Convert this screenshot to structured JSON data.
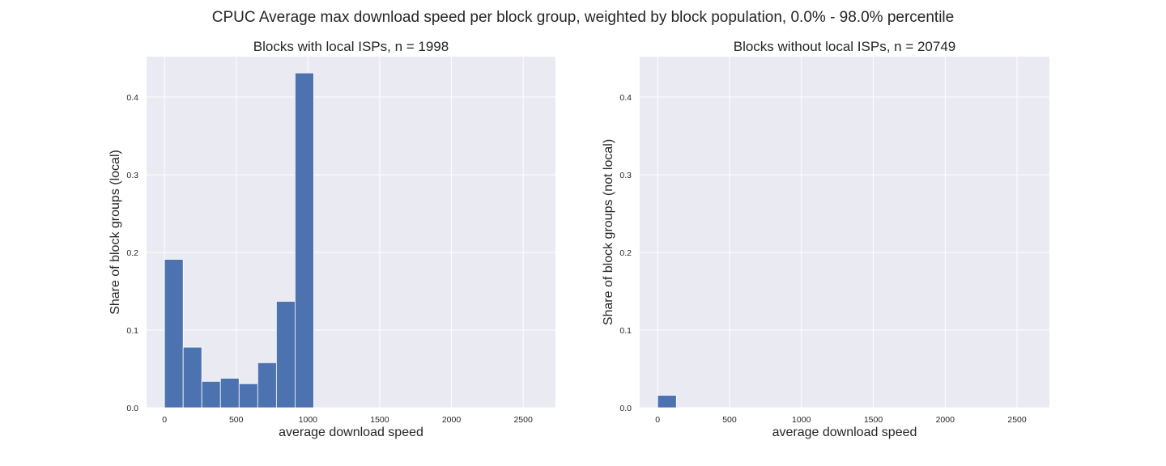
{
  "figure": {
    "suptitle": "CPUC Average max download speed per block group, weighted by block population, 0.0% - 98.0% percentile"
  },
  "colors": {
    "axes_background": "#eaeaf2",
    "grid": "#ffffff",
    "bar_fill": "#4c72b0",
    "bar_edge": "#ffffff",
    "text": "#262626"
  },
  "chart_data": [
    {
      "type": "bar",
      "title": "Blocks with local ISPs, n = 1998",
      "xlabel": "average download speed",
      "ylabel": "Share of block groups (local)",
      "xlim": [
        -125,
        2725
      ],
      "ylim": [
        0,
        0.452
      ],
      "xticks": [
        0,
        500,
        1000,
        1500,
        2000,
        2500
      ],
      "xtick_labels": [
        "0",
        "500",
        "1000",
        "1500",
        "2000",
        "2500"
      ],
      "yticks": [
        0.0,
        0.1,
        0.2,
        0.3,
        0.4
      ],
      "ytick_labels": [
        "0.0",
        "0.1",
        "0.2",
        "0.3",
        "0.4"
      ],
      "grid": true,
      "bin_edges": [
        0,
        130,
        260,
        390,
        520,
        650,
        780,
        910,
        1040
      ],
      "values": [
        0.191,
        0.078,
        0.034,
        0.038,
        0.031,
        0.058,
        0.137,
        0.431
      ]
    },
    {
      "type": "bar",
      "title": "Blocks without local ISPs, n = 20749",
      "xlabel": "average download speed",
      "ylabel": "Share of block groups (not local)",
      "xlim": [
        -125,
        2725
      ],
      "ylim": [
        0,
        0.452
      ],
      "xticks": [
        0,
        500,
        1000,
        1500,
        2000,
        2500
      ],
      "xtick_labels": [
        "0",
        "500",
        "1000",
        "1500",
        "2000",
        "2500"
      ],
      "yticks": [
        0.0,
        0.1,
        0.2,
        0.3,
        0.4
      ],
      "ytick_labels": [
        "0.0",
        "0.1",
        "0.2",
        "0.3",
        "0.4"
      ],
      "grid": true,
      "bin_edges": [
        0,
        130,
        260,
        390,
        520,
        650,
        780,
        910,
        1040,
        1170,
        1300,
        1430,
        1560,
        1690,
        1820,
        1950,
        2080,
        2210,
        2340,
        2470,
        2600
      ],
      "values": [
        0.016,
        0.0003,
        0.0002,
        0.0002,
        0.0001,
        0.0001,
        0.0001,
        0.0001,
        0.0001,
        0.0001,
        0.0001,
        0.0001,
        0.0001,
        0.0001,
        0.0001,
        0.0001,
        0.0001,
        0.0001,
        0.0001,
        0.0001
      ]
    }
  ]
}
